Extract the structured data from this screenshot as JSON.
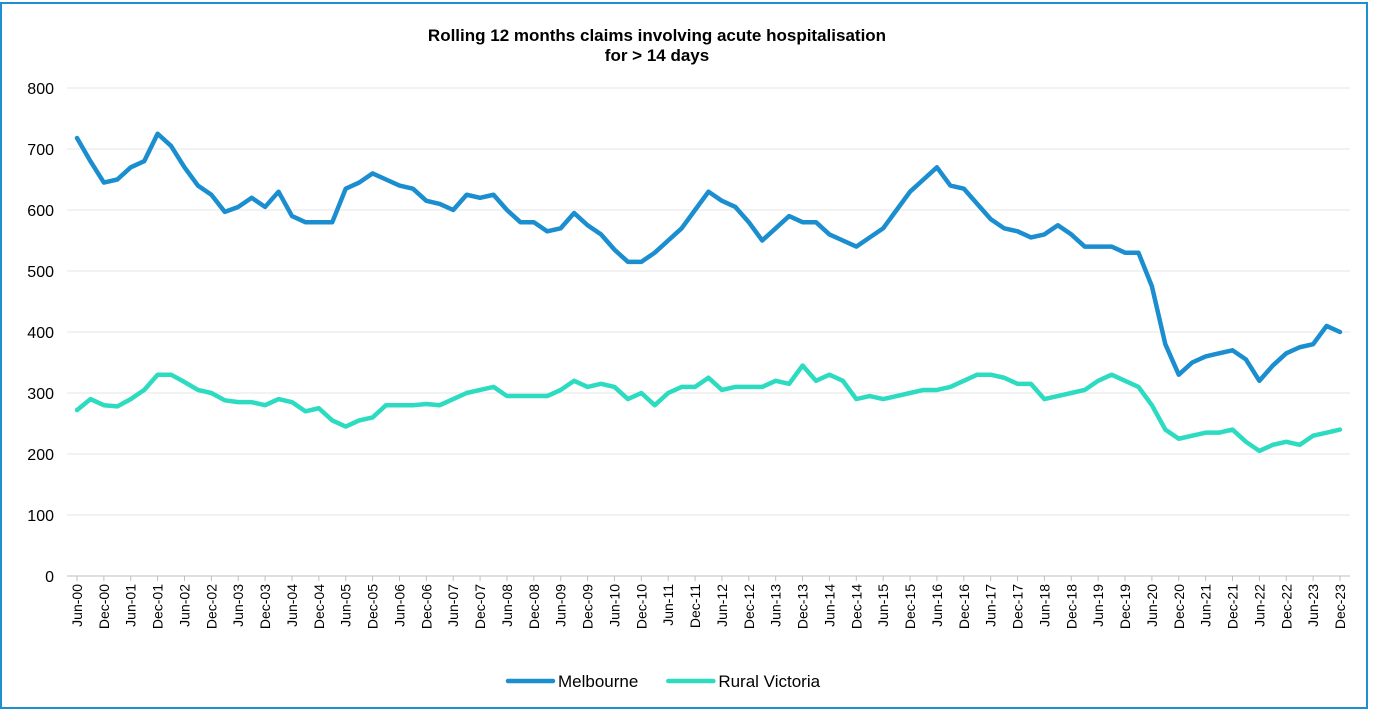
{
  "chart_data": {
    "type": "line",
    "title": [
      "Rolling 12 months claims involving acute hospitalisation",
      "for > 14 days"
    ],
    "categories": [
      "Jun-00",
      null,
      "Dec-00",
      null,
      "Jun-01",
      null,
      "Dec-01",
      null,
      "Jun-02",
      null,
      "Dec-02",
      null,
      "Jun-03",
      null,
      "Dec-03",
      null,
      "Jun-04",
      null,
      "Dec-04",
      null,
      "Jun-05",
      null,
      "Dec-05",
      null,
      "Jun-06",
      null,
      "Dec-06",
      null,
      "Jun-07",
      null,
      "Dec-07",
      null,
      "Jun-08",
      null,
      "Dec-08",
      null,
      "Jun-09",
      null,
      "Dec-09",
      null,
      "Jun-10",
      null,
      "Dec-10",
      null,
      "Jun-11",
      null,
      "Dec-11",
      null,
      "Jun-12",
      null,
      "Dec-12",
      null,
      "Jun-13",
      null,
      "Dec-13",
      null,
      "Jun-14",
      null,
      "Dec-14",
      null,
      "Jun-15",
      null,
      "Dec-15",
      null,
      "Jun-16",
      null,
      "Dec-16",
      null,
      "Jun-17",
      null,
      "Dec-17",
      null,
      "Jun-18",
      null,
      "Dec-18",
      null,
      "Jun-19",
      null,
      "Dec-19",
      null,
      "Jun-20",
      null,
      "Dec-20",
      null,
      "Jun-21",
      null,
      "Dec-21",
      null,
      "Jun-22",
      null,
      "Dec-22",
      null,
      "Jun-23",
      null,
      "Dec-23"
    ],
    "series": [
      {
        "name": "Melbourne",
        "color": "#1b8ed0",
        "values": [
          718,
          680,
          645,
          650,
          670,
          680,
          725,
          705,
          670,
          640,
          625,
          597,
          605,
          620,
          605,
          630,
          590,
          580,
          580,
          580,
          635,
          645,
          660,
          650,
          640,
          635,
          615,
          610,
          600,
          625,
          620,
          625,
          600,
          580,
          580,
          565,
          570,
          595,
          575,
          560,
          535,
          515,
          515,
          530,
          550,
          570,
          600,
          630,
          615,
          605,
          580,
          550,
          570,
          590,
          580,
          580,
          560,
          550,
          540,
          555,
          570,
          600,
          630,
          650,
          670,
          640,
          635,
          610,
          585,
          570,
          565,
          555,
          560,
          575,
          560,
          540,
          540,
          540,
          530,
          530,
          475,
          380,
          330,
          350,
          360,
          365,
          370,
          355,
          320,
          345,
          365,
          375,
          380,
          410,
          400
        ]
      },
      {
        "name": "Rural Victoria",
        "color": "#2ddcc0",
        "values": [
          272,
          290,
          280,
          278,
          290,
          305,
          330,
          330,
          318,
          305,
          300,
          288,
          285,
          285,
          280,
          290,
          285,
          270,
          275,
          255,
          245,
          255,
          260,
          280,
          280,
          280,
          282,
          280,
          290,
          300,
          305,
          310,
          295,
          295,
          295,
          295,
          305,
          320,
          310,
          315,
          310,
          290,
          300,
          280,
          300,
          310,
          310,
          325,
          305,
          310,
          310,
          310,
          320,
          315,
          345,
          320,
          330,
          320,
          290,
          295,
          290,
          295,
          300,
          305,
          305,
          310,
          320,
          330,
          330,
          325,
          315,
          315,
          290,
          295,
          300,
          305,
          320,
          330,
          320,
          310,
          280,
          240,
          225,
          230,
          235,
          235,
          240,
          220,
          205,
          215,
          220,
          215,
          230,
          235,
          240
        ]
      }
    ],
    "ylim": [
      0,
      800
    ],
    "yticks": [
      0,
      100,
      200,
      300,
      400,
      500,
      600,
      700,
      800
    ],
    "grid": true,
    "legend": "bottom"
  }
}
